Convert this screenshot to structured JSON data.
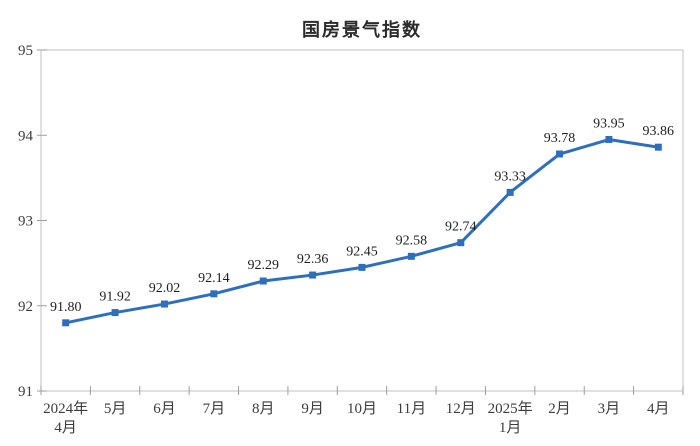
{
  "chart_data": {
    "type": "line",
    "title": "国房景气指数",
    "categories": [
      "2024年\n4月",
      "5月",
      "6月",
      "7月",
      "8月",
      "9月",
      "10月",
      "11月",
      "12月",
      "2025年\n1月",
      "2月",
      "3月",
      "4月"
    ],
    "values": [
      91.8,
      91.92,
      92.02,
      92.14,
      92.29,
      92.36,
      92.45,
      92.58,
      92.74,
      93.33,
      93.78,
      93.95,
      93.86
    ],
    "data_labels": [
      "91.80",
      "91.92",
      "92.02",
      "92.14",
      "92.29",
      "92.36",
      "92.45",
      "92.58",
      "92.74",
      "93.33",
      "93.78",
      "93.95",
      "93.86"
    ],
    "y_ticks": [
      "91",
      "92",
      "93",
      "94",
      "95"
    ],
    "ylim": [
      91,
      95
    ],
    "xlabel": "",
    "ylabel": "",
    "grid": false,
    "legend": "none",
    "line_color": "#2e6fbd",
    "marker": "square",
    "border_color": "#c2c2c2",
    "tick_color": "#9e9e9e",
    "axis_text_color": "#3d3d3d",
    "data_label_color": "#1f1f1f"
  }
}
